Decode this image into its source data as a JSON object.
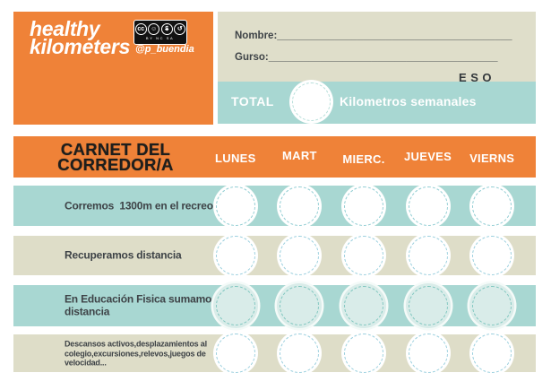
{
  "colors": {
    "orange": "#ef8238",
    "teal": "#a8d7d2",
    "beige": "#deddc8",
    "dark_text": "#3e4347",
    "title_black": "#1e1e1c",
    "circle_dash_blue": "#98cedd",
    "circle_dash_teal": "#7fc6bf",
    "circle_fill_pale": "#d9ece9"
  },
  "logo": {
    "title_line1": "healthy",
    "title_line2": "kilometers",
    "handle": "@p_buendia",
    "license_badge": {
      "icons": [
        "cc-icon",
        "attribution-person-icon",
        "non-commercial-dollar-icon",
        "share-alike-arrow-icon"
      ],
      "cc_glyph": "cc",
      "by_glyph": "☺",
      "nc_glyph": "$",
      "sa_glyph": "↺",
      "caption": "BY NC SA"
    }
  },
  "student_info": {
    "name_label": "Nombre:",
    "name_line": "_________________________________________",
    "class_label": "Gurso:",
    "class_line": "________________________________________",
    "level": "ESO"
  },
  "total_bar": {
    "label": "TOTAL",
    "unit_label": "Kilometros semanales"
  },
  "card_header": {
    "title_line1": "CARNET DEL",
    "title_line2": "CORREDOR/A",
    "days": [
      "LUNES",
      "MART",
      "MIERC.",
      "JUEVES",
      "VIERNS"
    ]
  },
  "rows": [
    {
      "label": "Corremos  1300m en el recreo"
    },
    {
      "label": "Recuperamos distancia"
    },
    {
      "label": "En Educación Fisica sumamos\ndistancia"
    },
    {
      "label": "Descansos activos,desplazamientos al\ncolegio,excursiones,relevos,juegos de\nvelocidad..."
    }
  ]
}
